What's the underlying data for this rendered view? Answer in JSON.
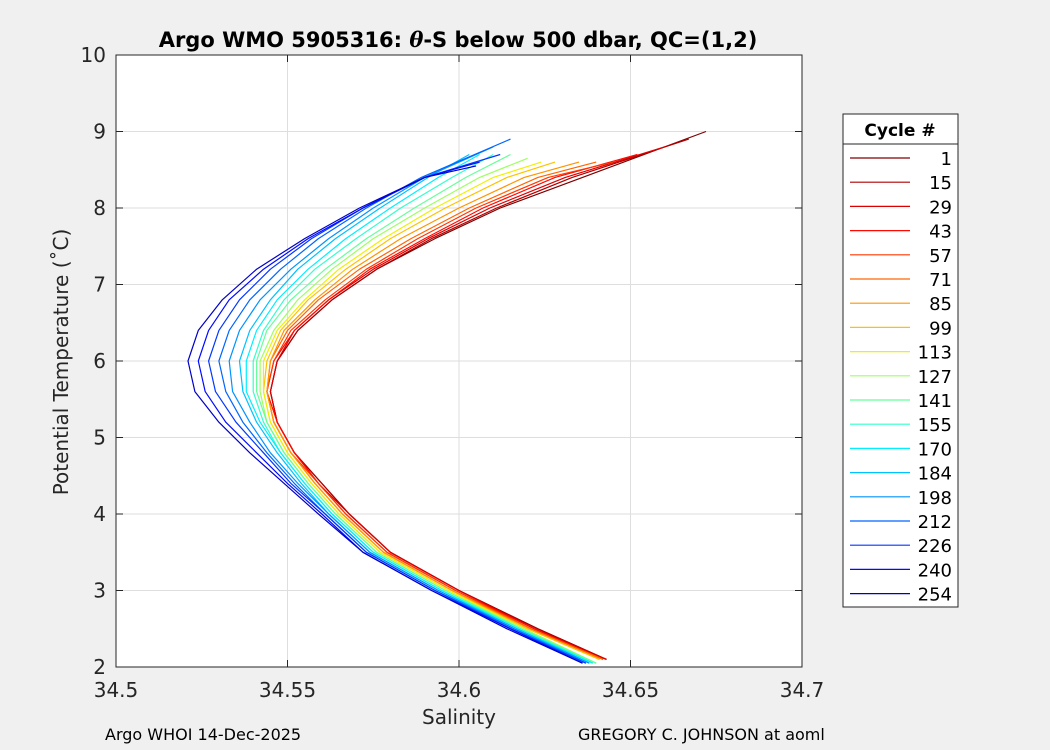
{
  "chart_data": {
    "type": "line",
    "title": "Argo WMO 5905316: θ-S below 500 dbar,  QC=(1,2)",
    "title_parts": {
      "before": "Argo WMO 5905316: ",
      "theta": "θ",
      "after": "-S below 500 dbar,  QC=(1,2)"
    },
    "xlabel": "Salinity",
    "ylabel": "Potential Temperature (˚C)",
    "xlim": [
      34.5,
      34.7
    ],
    "ylim": [
      2,
      10
    ],
    "xticks": [
      34.5,
      34.55,
      34.6,
      34.65,
      34.7
    ],
    "xtick_labels": [
      "34.5",
      "34.55",
      "34.6",
      "34.65",
      "34.7"
    ],
    "yticks": [
      2,
      3,
      4,
      5,
      6,
      7,
      8,
      9,
      10
    ],
    "ytick_labels": [
      "2",
      "3",
      "4",
      "5",
      "6",
      "7",
      "8",
      "9",
      "10"
    ],
    "grid": true,
    "legend_title": "Cycle #",
    "legend_placement": "outside-right",
    "colormap": "jet (cycle 1 dark red → cycle 254 dark blue)",
    "series": [
      {
        "name": "1",
        "color": "#800000",
        "x": [
          34.643,
          34.623,
          34.6,
          34.58,
          34.568,
          34.56,
          34.552,
          34.547,
          34.545,
          34.547,
          34.553,
          34.563,
          34.576,
          34.593,
          34.612,
          34.636,
          34.672
        ],
        "y": [
          2.1,
          2.5,
          3.0,
          3.5,
          4.0,
          4.4,
          4.8,
          5.2,
          5.6,
          6.0,
          6.4,
          6.8,
          7.2,
          7.6,
          8.0,
          8.4,
          9.0
        ]
      },
      {
        "name": "15",
        "color": "#AE0000",
        "x": [
          34.643,
          34.623,
          34.6,
          34.58,
          34.568,
          34.56,
          34.552,
          34.547,
          34.545,
          34.547,
          34.553,
          34.563,
          34.576,
          34.592,
          34.611,
          34.633,
          34.667
        ],
        "y": [
          2.1,
          2.5,
          3.0,
          3.5,
          4.0,
          4.4,
          4.8,
          5.2,
          5.6,
          6.0,
          6.4,
          6.8,
          7.2,
          7.6,
          8.0,
          8.4,
          8.9
        ]
      },
      {
        "name": "29",
        "color": "#DC0000",
        "x": [
          34.643,
          34.622,
          34.6,
          34.58,
          34.568,
          34.559,
          34.552,
          34.547,
          34.545,
          34.547,
          34.552,
          34.562,
          34.575,
          34.591,
          34.609,
          34.631,
          34.66
        ],
        "y": [
          2.1,
          2.5,
          3.0,
          3.5,
          4.0,
          4.4,
          4.8,
          5.2,
          5.6,
          6.0,
          6.4,
          6.8,
          7.2,
          7.6,
          8.0,
          8.4,
          8.8
        ]
      },
      {
        "name": "43",
        "color": "#FF0A00",
        "x": [
          34.642,
          34.622,
          34.599,
          34.579,
          34.567,
          34.559,
          34.552,
          34.547,
          34.544,
          34.546,
          34.552,
          34.562,
          34.574,
          34.59,
          34.607,
          34.628,
          34.652
        ],
        "y": [
          2.1,
          2.5,
          3.0,
          3.5,
          4.0,
          4.4,
          4.8,
          5.2,
          5.6,
          6.0,
          6.4,
          6.8,
          7.2,
          7.6,
          8.0,
          8.4,
          8.7
        ]
      },
      {
        "name": "57",
        "color": "#FF3800",
        "x": [
          34.642,
          34.621,
          34.599,
          34.579,
          34.567,
          34.559,
          34.551,
          34.546,
          34.544,
          34.546,
          34.551,
          34.561,
          34.573,
          34.588,
          34.605,
          34.626,
          34.645
        ],
        "y": [
          2.1,
          2.5,
          3.0,
          3.5,
          4.0,
          4.4,
          4.8,
          5.2,
          5.6,
          6.0,
          6.4,
          6.8,
          7.2,
          7.6,
          8.0,
          8.4,
          8.6
        ]
      },
      {
        "name": "71",
        "color": "#FF6600",
        "x": [
          34.642,
          34.621,
          34.598,
          34.578,
          34.566,
          34.558,
          34.551,
          34.546,
          34.544,
          34.545,
          34.55,
          34.559,
          34.571,
          34.586,
          34.603,
          34.623,
          34.64
        ],
        "y": [
          2.1,
          2.5,
          3.0,
          3.5,
          4.0,
          4.4,
          4.8,
          5.2,
          5.6,
          6.0,
          6.4,
          6.8,
          7.2,
          7.6,
          8.0,
          8.4,
          8.6
        ]
      },
      {
        "name": "85",
        "color": "#FF9400",
        "x": [
          34.641,
          34.62,
          34.598,
          34.578,
          34.566,
          34.558,
          34.551,
          34.546,
          34.544,
          34.545,
          34.549,
          34.558,
          34.569,
          34.583,
          34.6,
          34.619,
          34.635
        ],
        "y": [
          2.1,
          2.5,
          3.0,
          3.5,
          4.0,
          4.4,
          4.8,
          5.2,
          5.6,
          6.0,
          6.4,
          6.8,
          7.2,
          7.6,
          8.0,
          8.4,
          8.6
        ]
      },
      {
        "name": "99",
        "color": "#FFC200",
        "x": [
          34.641,
          34.62,
          34.597,
          34.577,
          34.565,
          34.557,
          34.55,
          34.545,
          34.543,
          34.544,
          34.548,
          34.556,
          34.567,
          34.58,
          34.596,
          34.614,
          34.628
        ],
        "y": [
          2.1,
          2.5,
          3.0,
          3.5,
          4.0,
          4.4,
          4.8,
          5.2,
          5.6,
          6.0,
          6.4,
          6.8,
          7.2,
          7.6,
          8.0,
          8.4,
          8.6
        ]
      },
      {
        "name": "113",
        "color": "#F0F000",
        "x": [
          34.64,
          34.619,
          34.597,
          34.577,
          34.565,
          34.557,
          34.55,
          34.545,
          34.543,
          34.543,
          34.547,
          34.555,
          34.565,
          34.578,
          34.593,
          34.61,
          34.624
        ],
        "y": [
          2.05,
          2.5,
          3.0,
          3.5,
          4.0,
          4.4,
          4.8,
          5.2,
          5.6,
          6.0,
          6.4,
          6.8,
          7.2,
          7.6,
          8.0,
          8.4,
          8.6
        ]
      },
      {
        "name": "127",
        "color": "#9EFF60",
        "x": [
          34.64,
          34.619,
          34.596,
          34.576,
          34.564,
          34.556,
          34.549,
          34.544,
          34.542,
          34.542,
          34.546,
          34.553,
          34.563,
          34.575,
          34.59,
          34.606,
          34.62
        ],
        "y": [
          2.05,
          2.5,
          3.0,
          3.5,
          4.0,
          4.4,
          4.8,
          5.2,
          5.6,
          6.0,
          6.4,
          6.8,
          7.2,
          7.6,
          8.0,
          8.4,
          8.65
        ]
      },
      {
        "name": "141",
        "color": "#66FF99",
        "x": [
          34.64,
          34.618,
          34.596,
          34.576,
          34.564,
          34.556,
          34.549,
          34.544,
          34.541,
          34.541,
          34.544,
          34.551,
          34.561,
          34.573,
          34.587,
          34.602,
          34.615
        ],
        "y": [
          2.05,
          2.5,
          3.0,
          3.5,
          4.0,
          4.4,
          4.8,
          5.2,
          5.6,
          6.0,
          6.4,
          6.8,
          7.2,
          7.6,
          8.0,
          8.4,
          8.7
        ]
      },
      {
        "name": "155",
        "color": "#32FFCC",
        "x": [
          34.639,
          34.618,
          34.595,
          34.575,
          34.563,
          34.555,
          34.548,
          34.543,
          34.54,
          34.54,
          34.543,
          34.549,
          34.558,
          34.57,
          34.583,
          34.598,
          34.61
        ],
        "y": [
          2.05,
          2.5,
          3.0,
          3.5,
          4.0,
          4.4,
          4.8,
          5.2,
          5.6,
          6.0,
          6.4,
          6.8,
          7.2,
          7.6,
          8.0,
          8.4,
          8.7
        ]
      },
      {
        "name": "170",
        "color": "#00F0FF",
        "x": [
          34.639,
          34.617,
          34.595,
          34.575,
          34.563,
          34.555,
          34.548,
          34.542,
          34.538,
          34.538,
          34.541,
          34.547,
          34.556,
          34.567,
          34.58,
          34.594,
          34.606
        ],
        "y": [
          2.05,
          2.5,
          3.0,
          3.5,
          4.0,
          4.4,
          4.8,
          5.2,
          5.6,
          6.0,
          6.4,
          6.8,
          7.2,
          7.6,
          8.0,
          8.4,
          8.7
        ]
      },
      {
        "name": "184",
        "color": "#00C2FF",
        "x": [
          34.638,
          34.617,
          34.594,
          34.574,
          34.562,
          34.554,
          34.547,
          34.541,
          34.537,
          34.536,
          34.539,
          34.545,
          34.553,
          34.564,
          34.577,
          34.591,
          34.603
        ],
        "y": [
          2.05,
          2.5,
          3.0,
          3.5,
          4.0,
          4.4,
          4.8,
          5.2,
          5.6,
          6.0,
          6.4,
          6.8,
          7.2,
          7.6,
          8.0,
          8.4,
          8.7
        ]
      },
      {
        "name": "198",
        "color": "#0094FF",
        "x": [
          34.638,
          34.616,
          34.594,
          34.574,
          34.562,
          34.553,
          34.545,
          34.539,
          34.534,
          34.533,
          34.536,
          34.542,
          34.551,
          34.562,
          34.575,
          34.59,
          34.61
        ],
        "y": [
          2.05,
          2.5,
          3.0,
          3.5,
          4.0,
          4.4,
          4.8,
          5.2,
          5.6,
          6.0,
          6.4,
          6.8,
          7.2,
          7.6,
          8.0,
          8.4,
          8.8
        ]
      },
      {
        "name": "212",
        "color": "#0066FF",
        "x": [
          34.637,
          34.616,
          34.593,
          34.573,
          34.561,
          34.552,
          34.544,
          34.537,
          34.532,
          34.53,
          34.533,
          34.539,
          34.548,
          34.559,
          34.573,
          34.589,
          34.615
        ],
        "y": [
          2.05,
          2.5,
          3.0,
          3.5,
          4.0,
          4.4,
          4.8,
          5.2,
          5.6,
          6.0,
          6.4,
          6.8,
          7.2,
          7.6,
          8.0,
          8.4,
          8.9
        ]
      },
      {
        "name": "226",
        "color": "#0038FF",
        "x": [
          34.637,
          34.615,
          34.593,
          34.573,
          34.561,
          34.551,
          34.543,
          34.535,
          34.529,
          34.527,
          34.53,
          34.536,
          34.545,
          34.557,
          34.572,
          34.59,
          34.612
        ],
        "y": [
          2.05,
          2.5,
          3.0,
          3.5,
          4.0,
          4.4,
          4.8,
          5.2,
          5.6,
          6.0,
          6.4,
          6.8,
          7.2,
          7.6,
          8.0,
          8.4,
          8.7
        ]
      },
      {
        "name": "240",
        "color": "#000AFF",
        "x": [
          34.636,
          34.615,
          34.592,
          34.572,
          34.56,
          34.55,
          34.541,
          34.532,
          34.526,
          34.524,
          34.527,
          34.533,
          34.543,
          34.556,
          34.572,
          34.59,
          34.606
        ],
        "y": [
          2.05,
          2.5,
          3.0,
          3.5,
          4.0,
          4.4,
          4.8,
          5.2,
          5.6,
          6.0,
          6.4,
          6.8,
          7.2,
          7.6,
          8.0,
          8.4,
          8.6
        ]
      },
      {
        "name": "254",
        "color": "#0000C8",
        "x": [
          34.636,
          34.614,
          34.592,
          34.572,
          34.559,
          34.549,
          34.539,
          34.53,
          34.523,
          34.521,
          34.524,
          34.531,
          34.541,
          34.555,
          34.571,
          34.59,
          34.605
        ],
        "y": [
          2.05,
          2.5,
          3.0,
          3.5,
          4.0,
          4.4,
          4.8,
          5.2,
          5.6,
          6.0,
          6.4,
          6.8,
          7.2,
          7.6,
          8.0,
          8.4,
          8.55
        ]
      }
    ]
  },
  "footer": {
    "left": "Argo WHOI 14-Dec-2025",
    "right": "GREGORY C. JOHNSON at aoml"
  }
}
